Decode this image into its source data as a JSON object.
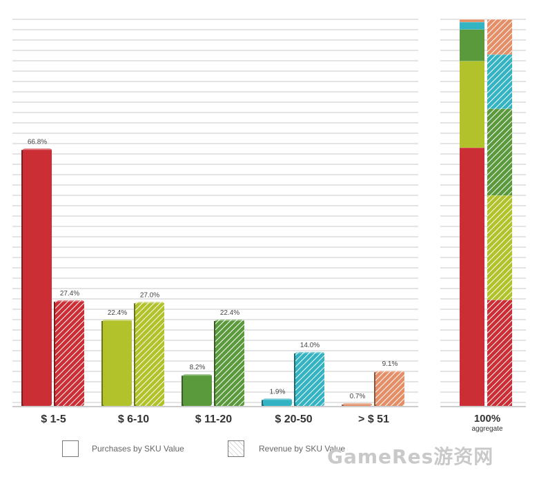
{
  "chart_data": [
    {
      "type": "bar",
      "categories": [
        "$ 1-5",
        "$ 6-10",
        "$ 11-20",
        "$ 20-50",
        "> $ 51"
      ],
      "series": [
        {
          "name": "Purchases by SKU Value",
          "values": [
            66.8,
            22.4,
            8.2,
            1.9,
            0.7
          ],
          "labels": [
            "66.8%",
            "22.4%",
            "8.2%",
            "1.9%",
            "0.7%"
          ]
        },
        {
          "name": "Revenue by SKU Value",
          "values": [
            27.4,
            27.0,
            22.4,
            14.0,
            9.1
          ],
          "labels": [
            "27.4%",
            "27.0%",
            "22.4%",
            "14.0%",
            "9.1%"
          ]
        }
      ],
      "colors": [
        "#cc2e35",
        "#b1c22a",
        "#5b9a3c",
        "#34b3c2",
        "#e48f68"
      ],
      "ylim": [
        0,
        70
      ],
      "grid": true
    },
    {
      "type": "bar",
      "stacked": true,
      "category": "100%",
      "sublabel": "aggregate",
      "series": [
        {
          "name": "Purchases by SKU Value",
          "values": [
            66.8,
            22.4,
            8.2,
            1.9,
            0.7
          ]
        },
        {
          "name": "Revenue by SKU Value",
          "values": [
            27.4,
            27.0,
            22.4,
            14.0,
            9.1
          ]
        }
      ]
    }
  ],
  "legend": {
    "purchases": "Purchases by SKU Value",
    "revenue": "Revenue by SKU Value"
  },
  "watermark": "GameRes游资网"
}
